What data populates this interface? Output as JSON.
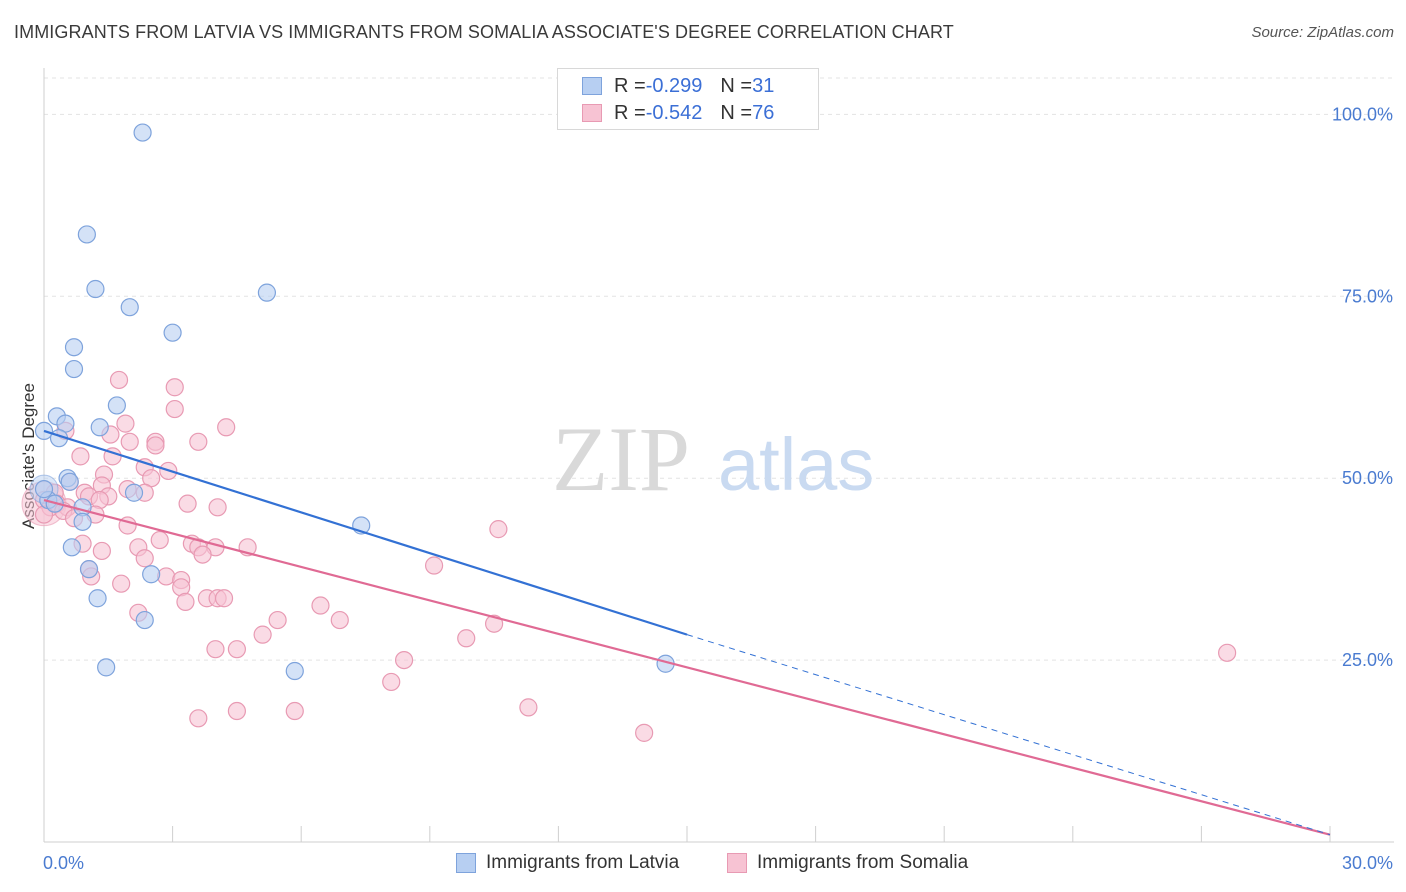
{
  "title": "IMMIGRANTS FROM LATVIA VS IMMIGRANTS FROM SOMALIA ASSOCIATE'S DEGREE CORRELATION CHART",
  "source": "Source: ZipAtlas.com",
  "watermark": {
    "zip": "ZIP",
    "atlas": "atlas"
  },
  "legend": {
    "latvia": {
      "r_label": "R = ",
      "r_value": "-0.299",
      "n_label": "N = ",
      "n_value": "31"
    },
    "somalia": {
      "r_label": "R = ",
      "r_value": "-0.542",
      "n_label": "N = ",
      "n_value": "76"
    }
  },
  "colors": {
    "latvia_fill": "#b7cff2",
    "latvia_stroke": "#7ea3dc",
    "latvia_line": "#3371d4",
    "somalia_fill": "#f7c3d3",
    "somalia_stroke": "#e89ab3",
    "somalia_line": "#e06a94",
    "grid": "#e3e3e3",
    "tick_label": "#4a7bd0"
  },
  "chart_data": {
    "type": "scatter",
    "title": "IMMIGRANTS FROM LATVIA VS IMMIGRANTS FROM SOMALIA ASSOCIATE'S DEGREE CORRELATION CHART",
    "xlabel": "",
    "ylabel": "Associate's Degree",
    "xlim": [
      0,
      30
    ],
    "ylim": [
      0,
      105
    ],
    "x_tick_labels": {
      "left": "0.0%",
      "right": "30.0%"
    },
    "y_ticks": [
      {
        "value": 25,
        "label": "25.0%"
      },
      {
        "value": 50,
        "label": "50.0%"
      },
      {
        "value": 75,
        "label": "75.0%"
      },
      {
        "value": 100,
        "label": "100.0%"
      }
    ],
    "series": [
      {
        "name": "Immigrants from Latvia",
        "points": [
          [
            2.3,
            97.5
          ],
          [
            1.0,
            83.5
          ],
          [
            1.2,
            76
          ],
          [
            2.0,
            73.5
          ],
          [
            5.2,
            75.5
          ],
          [
            3.0,
            70
          ],
          [
            0.7,
            68
          ],
          [
            0.7,
            65
          ],
          [
            1.7,
            60
          ],
          [
            0.3,
            58.5
          ],
          [
            0.5,
            57.5
          ],
          [
            1.3,
            57
          ],
          [
            0.0,
            56.5
          ],
          [
            0.35,
            55.5
          ],
          [
            0.55,
            50
          ],
          [
            0.6,
            49.5
          ],
          [
            2.1,
            48
          ],
          [
            0.1,
            47
          ],
          [
            0.0,
            48.5
          ],
          [
            0.25,
            46.5
          ],
          [
            0.9,
            46
          ],
          [
            0.9,
            44
          ],
          [
            7.4,
            43.5
          ],
          [
            0.65,
            40.5
          ],
          [
            1.05,
            37.5
          ],
          [
            2.5,
            36.8
          ],
          [
            1.25,
            33.5
          ],
          [
            2.35,
            30.5
          ],
          [
            1.45,
            24
          ],
          [
            5.85,
            23.5
          ],
          [
            14.5,
            24.5
          ]
        ],
        "trend": {
          "x1": 0,
          "y1": 56.5,
          "x2": 15,
          "y2": 28.5,
          "dashed_to": {
            "x": 30,
            "y": 1
          }
        }
      },
      {
        "name": "Immigrants from Somalia",
        "points": [
          [
            1.75,
            63.5
          ],
          [
            3.05,
            62.5
          ],
          [
            3.05,
            59.5
          ],
          [
            1.9,
            57.5
          ],
          [
            4.25,
            57
          ],
          [
            1.55,
            56
          ],
          [
            0.5,
            56.5
          ],
          [
            2.0,
            55
          ],
          [
            2.6,
            55
          ],
          [
            2.6,
            54.5
          ],
          [
            3.6,
            55
          ],
          [
            0.85,
            53
          ],
          [
            1.6,
            53
          ],
          [
            2.35,
            51.5
          ],
          [
            2.9,
            51
          ],
          [
            1.4,
            50.5
          ],
          [
            2.5,
            50
          ],
          [
            0.6,
            49.5
          ],
          [
            1.35,
            49
          ],
          [
            1.95,
            48.5
          ],
          [
            2.35,
            48
          ],
          [
            0.25,
            48
          ],
          [
            0.95,
            48
          ],
          [
            1.05,
            47.5
          ],
          [
            1.5,
            47.5
          ],
          [
            1.3,
            47
          ],
          [
            0.0,
            47
          ],
          [
            0.15,
            46
          ],
          [
            0.3,
            46.5
          ],
          [
            0.55,
            46
          ],
          [
            3.35,
            46.5
          ],
          [
            4.05,
            46
          ],
          [
            0.45,
            45.5
          ],
          [
            0.7,
            44.5
          ],
          [
            1.2,
            45
          ],
          [
            0.0,
            45
          ],
          [
            1.95,
            43.5
          ],
          [
            10.6,
            43
          ],
          [
            2.7,
            41.5
          ],
          [
            3.45,
            41
          ],
          [
            3.6,
            40.5
          ],
          [
            2.2,
            40.5
          ],
          [
            4.0,
            40.5
          ],
          [
            4.75,
            40.5
          ],
          [
            0.9,
            41
          ],
          [
            1.35,
            40
          ],
          [
            3.7,
            39.5
          ],
          [
            2.35,
            39
          ],
          [
            9.1,
            38
          ],
          [
            1.05,
            37.5
          ],
          [
            2.85,
            36.5
          ],
          [
            3.2,
            36
          ],
          [
            1.8,
            35.5
          ],
          [
            1.1,
            36.5
          ],
          [
            3.2,
            35
          ],
          [
            3.8,
            33.5
          ],
          [
            4.05,
            33.5
          ],
          [
            4.2,
            33.5
          ],
          [
            3.3,
            33
          ],
          [
            6.45,
            32.5
          ],
          [
            2.2,
            31.5
          ],
          [
            5.45,
            30.5
          ],
          [
            6.9,
            30.5
          ],
          [
            10.5,
            30
          ],
          [
            5.1,
            28.5
          ],
          [
            9.85,
            28
          ],
          [
            4.0,
            26.5
          ],
          [
            4.5,
            26.5
          ],
          [
            8.4,
            25
          ],
          [
            8.1,
            22
          ],
          [
            11.3,
            18.5
          ],
          [
            3.6,
            17
          ],
          [
            4.5,
            18
          ],
          [
            5.85,
            18
          ],
          [
            14.0,
            15
          ],
          [
            27.6,
            26
          ]
        ],
        "trend": {
          "x1": 0,
          "y1": 47,
          "x2": 30,
          "y2": 1
        }
      }
    ]
  },
  "bottom_legend": {
    "latvia": "Immigrants from Latvia",
    "somalia": "Immigrants from Somalia"
  }
}
